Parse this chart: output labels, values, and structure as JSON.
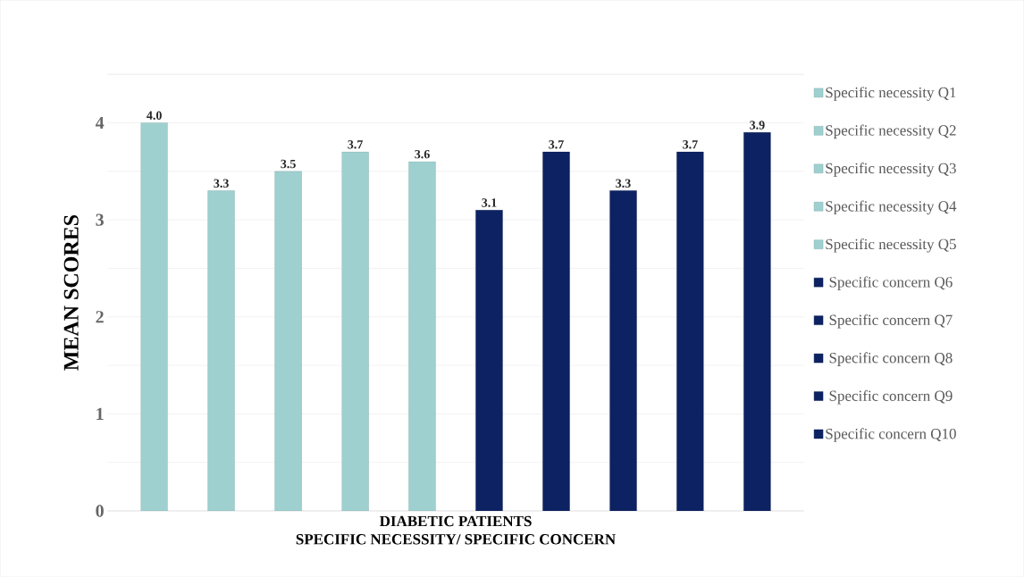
{
  "chart_data": {
    "type": "bar",
    "categories": [
      "DIABETIC PATIENTS"
    ],
    "xlabel": "SPECIFIC NECESSITY/  SPECIFIC CONCERN",
    "ylabel": "MEAN SCORES",
    "ylim": [
      0,
      4.5
    ],
    "yticks": [
      0,
      1,
      2,
      3,
      4
    ],
    "grid": "y",
    "legend": "right",
    "series": [
      {
        "name": "Specific necessity Q1",
        "color": "#9fd0d0",
        "values": [
          4.0
        ],
        "value_labels": [
          "4.0"
        ]
      },
      {
        "name": "Specific necessity Q2",
        "color": "#9fd0d0",
        "values": [
          3.3
        ],
        "value_labels": [
          "3.3"
        ]
      },
      {
        "name": "Specific necessity Q3",
        "color": "#9fd0d0",
        "values": [
          3.5
        ],
        "value_labels": [
          "3.5"
        ]
      },
      {
        "name": "Specific necessity Q4",
        "color": "#9fd0d0",
        "values": [
          3.7
        ],
        "value_labels": [
          "3.7"
        ]
      },
      {
        "name": "Specific necessity Q5",
        "color": "#9fd0d0",
        "values": [
          3.6
        ],
        "value_labels": [
          "3.6"
        ]
      },
      {
        "name": "Specific concern Q6",
        "color": "#0c2262",
        "values": [
          3.1
        ],
        "value_labels": [
          "3.1"
        ]
      },
      {
        "name": "Specific concern Q7",
        "color": "#0c2262",
        "values": [
          3.7
        ],
        "value_labels": [
          "3.7"
        ]
      },
      {
        "name": "Specific concern Q8",
        "color": "#0c2262",
        "values": [
          3.3
        ],
        "value_labels": [
          "3.3"
        ]
      },
      {
        "name": "Specific concern Q9",
        "color": "#0c2262",
        "values": [
          3.7
        ],
        "value_labels": [
          "3.7"
        ]
      },
      {
        "name": "Specific concern Q10",
        "color": "#0c2262",
        "values": [
          3.9
        ],
        "value_labels": [
          "3.9"
        ]
      }
    ]
  }
}
